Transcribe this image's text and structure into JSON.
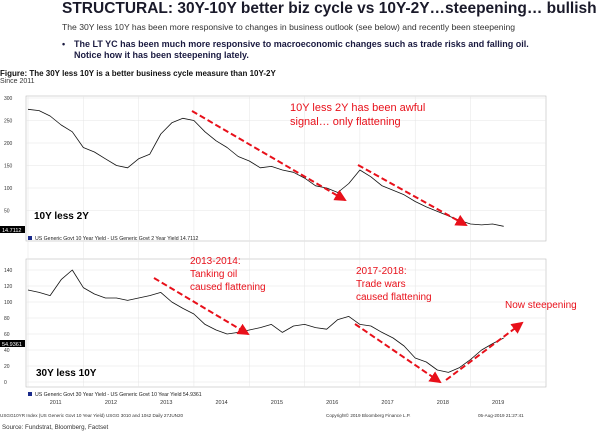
{
  "slide": {
    "title": "STRUCTURAL: 30Y-10Y better biz cycle vs 10Y-2Y…steepening… bullish",
    "subtitle": "The 30Y less 10Y has been more responsive to changes in business outlook (see below) and recently been steepening",
    "bullet_symbol": "•",
    "bullet_line1": "The LT YC has been much more responsive to macroeconomic changes such as trade risks and falling oil.",
    "bullet_line2": "Notice how it has been steepening lately."
  },
  "figure": {
    "title": "Figure: The 30Y less 10Y is a better business cycle measure than 10Y-2Y",
    "subtitle": "Since 2011",
    "source": "Source: Fundstrat, Bloomberg, Factset"
  },
  "colors": {
    "series": "#111111",
    "annotation": "#e8101a",
    "value_tag_bg": "#000000",
    "legend_square": "#1a2a8a"
  },
  "chart_data": [
    {
      "type": "line",
      "panel": "top",
      "label": "10Y less 2Y",
      "legend": "US Generic Govt 10 Year Yield - US Generic Govt 2 Year Yield 14.7112",
      "last_value_tag": "14.7112",
      "ylim": [
        0,
        300
      ],
      "yticks": [
        "50",
        "100",
        "150",
        "200",
        "250",
        "300"
      ],
      "x": [
        2011.0,
        2011.2,
        2011.4,
        2011.6,
        2011.8,
        2012.0,
        2012.2,
        2012.4,
        2012.6,
        2012.8,
        2013.0,
        2013.2,
        2013.4,
        2013.6,
        2013.8,
        2014.0,
        2014.2,
        2014.4,
        2014.6,
        2014.8,
        2015.0,
        2015.2,
        2015.4,
        2015.6,
        2015.8,
        2016.0,
        2016.2,
        2016.4,
        2016.6,
        2016.8,
        2017.0,
        2017.2,
        2017.4,
        2017.6,
        2017.8,
        2018.0,
        2018.2,
        2018.4,
        2018.6,
        2018.8,
        2019.0,
        2019.2,
        2019.4,
        2019.6
      ],
      "y": [
        275,
        272,
        260,
        240,
        225,
        190,
        180,
        165,
        150,
        145,
        165,
        175,
        220,
        245,
        255,
        250,
        225,
        205,
        190,
        170,
        160,
        145,
        148,
        140,
        135,
        122,
        105,
        100,
        90,
        110,
        140,
        125,
        105,
        95,
        85,
        70,
        58,
        48,
        38,
        28,
        20,
        18,
        20,
        15
      ],
      "annotations": [
        {
          "text_lines": [
            "10Y less 2Y has been awful",
            "signal… only flattening"
          ]
        }
      ]
    },
    {
      "type": "line",
      "panel": "bottom",
      "label": "30Y less 10Y",
      "legend": "US Generic Govt 30 Year Yield - US Generic Govt 10 Year Yield 54.9361",
      "last_value_tag": "54.9361",
      "ylim": [
        0,
        150
      ],
      "yticks": [
        "0",
        "20",
        "40",
        "60",
        "80",
        "100",
        "120",
        "140"
      ],
      "x": [
        2011.0,
        2011.2,
        2011.4,
        2011.6,
        2011.8,
        2012.0,
        2012.2,
        2012.4,
        2012.6,
        2012.8,
        2013.0,
        2013.2,
        2013.4,
        2013.6,
        2013.8,
        2014.0,
        2014.2,
        2014.4,
        2014.6,
        2014.8,
        2015.0,
        2015.2,
        2015.4,
        2015.6,
        2015.8,
        2016.0,
        2016.2,
        2016.4,
        2016.6,
        2016.8,
        2017.0,
        2017.2,
        2017.4,
        2017.6,
        2017.8,
        2018.0,
        2018.2,
        2018.4,
        2018.6,
        2018.8,
        2019.0,
        2019.2,
        2019.4,
        2019.6
      ],
      "y": [
        115,
        112,
        108,
        128,
        140,
        118,
        110,
        105,
        105,
        102,
        105,
        108,
        112,
        100,
        92,
        85,
        72,
        65,
        60,
        62,
        65,
        68,
        72,
        62,
        70,
        72,
        68,
        66,
        78,
        82,
        72,
        70,
        62,
        55,
        45,
        30,
        25,
        15,
        12,
        18,
        28,
        40,
        48,
        55
      ],
      "annotations": [
        {
          "text_lines": [
            "2013-2014:",
            "Tanking oil",
            "caused flattening"
          ]
        },
        {
          "text_lines": [
            "2017-2018:",
            "Trade wars",
            "caused flattening"
          ]
        },
        {
          "text_lines": [
            "Now steepening"
          ]
        }
      ]
    }
  ],
  "x_axis": {
    "labels": [
      "2011",
      "2012",
      "2013",
      "2014",
      "2015",
      "2016",
      "2017",
      "2018",
      "2019"
    ],
    "footer_left": "USGG10YR Index (US Generic Govt 10 Year Yield) USGG 3010 and 10s2 Daily 27JUN20",
    "footer_right": "Copyright© 2019 Bloomberg Finance L.P.",
    "footer_date": "05-Aug-2019 21:27:41"
  }
}
